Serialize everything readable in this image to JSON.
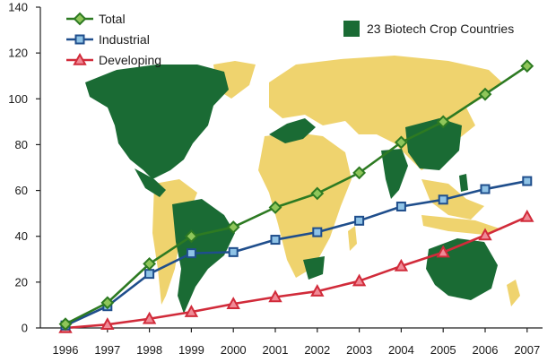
{
  "chart_data": {
    "type": "line",
    "title": "",
    "xlabel": "",
    "ylabel": "",
    "ylim": [
      0,
      140
    ],
    "yticks": [
      0,
      20,
      40,
      60,
      80,
      100,
      120,
      140
    ],
    "x": [
      "1996",
      "1997",
      "1998",
      "1999",
      "2000",
      "2001",
      "2002",
      "2003",
      "2004",
      "2005",
      "2006",
      "2007"
    ],
    "series": [
      {
        "name": "Total",
        "marker": "diamond",
        "color": "#2d7a22",
        "marker_fill": "#8fc65a",
        "values": [
          1.7,
          11,
          28,
          40,
          44,
          52.6,
          58.7,
          67.7,
          81,
          90,
          102,
          114.3
        ]
      },
      {
        "name": "Industrial",
        "marker": "square",
        "color": "#1f4e8c",
        "marker_fill": "#8fc3e6",
        "values": [
          1.1,
          9.5,
          23.6,
          32.6,
          33.1,
          38.5,
          41.8,
          46.8,
          53,
          56,
          60.6,
          64.1
        ]
      },
      {
        "name": "Developing",
        "marker": "triangle",
        "color": "#d12b3a",
        "marker_fill": "#f08a96",
        "values": [
          0,
          1.5,
          4,
          7,
          10.5,
          13.5,
          16,
          20.5,
          27,
          33,
          40.5,
          48.5
        ]
      }
    ],
    "grid": false,
    "legend_position": "top-left",
    "background": "world map, biotech crop countries highlighted",
    "map_legend": {
      "label": "23 Biotech Crop Countries",
      "color": "#1a6b34"
    }
  }
}
